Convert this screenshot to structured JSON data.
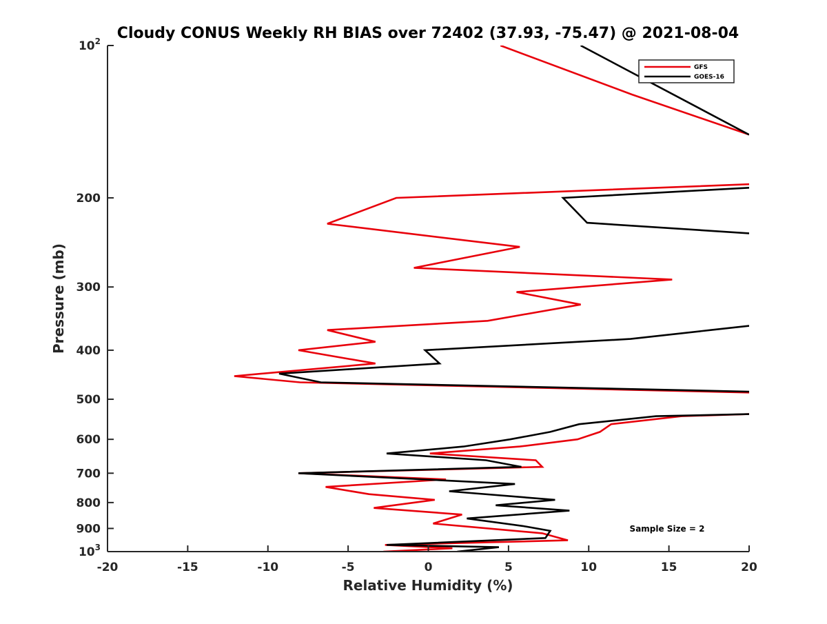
{
  "chart_data": {
    "type": "line",
    "title": "Cloudy CONUS Weekly RH BIAS over 72402 (37.93, -75.47) @ 2021-08-04",
    "xlabel": "Relative Humidity (%)",
    "ylabel": "Pressure (mb)",
    "xlim": [
      -20,
      20
    ],
    "ylim": [
      100,
      1000
    ],
    "y_scale": "log",
    "y_reversed": true,
    "grid": false,
    "legend_position": "top-right",
    "x_ticks": [
      -20,
      -15,
      -10,
      -5,
      0,
      5,
      10,
      15,
      20
    ],
    "x_tick_labels": [
      "-20",
      "-15",
      "-10",
      "-5",
      "0",
      "5",
      "10",
      "15",
      "20"
    ],
    "y_ticks": [
      {
        "value": 100,
        "base": "10",
        "exp": "2"
      },
      {
        "value": 200,
        "label": "200"
      },
      {
        "value": 300,
        "label": "300"
      },
      {
        "value": 400,
        "label": "400"
      },
      {
        "value": 500,
        "label": "500"
      },
      {
        "value": 600,
        "label": "600"
      },
      {
        "value": 700,
        "label": "700"
      },
      {
        "value": 800,
        "label": "800"
      },
      {
        "value": 900,
        "label": "900"
      },
      {
        "value": 1000,
        "base": "10",
        "exp": "3"
      }
    ],
    "annotation": "Sample Size = 2",
    "series": [
      {
        "name": "GFS",
        "color": "#e8000b",
        "points": [
          [
            4.5,
            100
          ],
          [
            12.7,
            125
          ],
          [
            20,
            150
          ],
          [
            null,
            null
          ],
          [
            20,
            188
          ],
          [
            -2,
            200
          ],
          [
            -6.3,
            225
          ],
          [
            5.7,
            250
          ],
          [
            -0.9,
            275
          ],
          [
            15.2,
            290
          ],
          [
            5.5,
            307
          ],
          [
            9.5,
            325
          ],
          [
            3.7,
            350
          ],
          [
            -6.3,
            365
          ],
          [
            -3.3,
            385
          ],
          [
            -8.1,
            400
          ],
          [
            -3.3,
            425
          ],
          [
            -12.1,
            450
          ],
          [
            -8.0,
            463
          ],
          [
            20,
            485
          ],
          [
            null,
            null
          ],
          [
            20,
            535
          ],
          [
            15.8,
            540
          ],
          [
            11.4,
            560
          ],
          [
            10.7,
            580
          ],
          [
            9.3,
            600
          ],
          [
            5.7,
            620
          ],
          [
            0.1,
            640
          ],
          [
            6.7,
            660
          ],
          [
            7.1,
            680
          ],
          [
            -8.1,
            700
          ],
          [
            1.1,
            720
          ],
          [
            -6.4,
            745
          ],
          [
            -3.7,
            770
          ],
          [
            0.4,
            790
          ],
          [
            -3.4,
            820
          ],
          [
            2.1,
            845
          ],
          [
            0.3,
            880
          ],
          [
            7.1,
            920
          ],
          [
            8.7,
            950
          ],
          [
            -2.7,
            970
          ],
          [
            1.5,
            985
          ],
          [
            -2.8,
            1000
          ]
        ]
      },
      {
        "name": "GOES-16",
        "color": "#000000",
        "points": [
          [
            9.5,
            100
          ],
          [
            20,
            150
          ],
          [
            null,
            null
          ],
          [
            20,
            191
          ],
          [
            8.4,
            200
          ],
          [
            9.9,
            224
          ],
          [
            20,
            235
          ],
          [
            null,
            null
          ],
          [
            20,
            358
          ],
          [
            17.6,
            365
          ],
          [
            12.6,
            380
          ],
          [
            -0.2,
            400
          ],
          [
            0.7,
            425
          ],
          [
            -9.3,
            445
          ],
          [
            -6.7,
            463
          ],
          [
            20,
            483
          ],
          [
            null,
            null
          ],
          [
            20,
            535
          ],
          [
            14.2,
            540
          ],
          [
            9.4,
            560
          ],
          [
            7.6,
            580
          ],
          [
            5.1,
            600
          ],
          [
            2.2,
            620
          ],
          [
            -2.6,
            640
          ],
          [
            3.6,
            660
          ],
          [
            5.8,
            680
          ],
          [
            -8.1,
            700
          ],
          [
            5.4,
            735
          ],
          [
            1.3,
            760
          ],
          [
            7.9,
            790
          ],
          [
            4.2,
            810
          ],
          [
            8.8,
            830
          ],
          [
            2.4,
            860
          ],
          [
            5.9,
            890
          ],
          [
            7.6,
            910
          ],
          [
            7.3,
            940
          ],
          [
            -2.6,
            970
          ],
          [
            4.4,
            980
          ],
          [
            1.8,
            1000
          ]
        ]
      }
    ]
  }
}
